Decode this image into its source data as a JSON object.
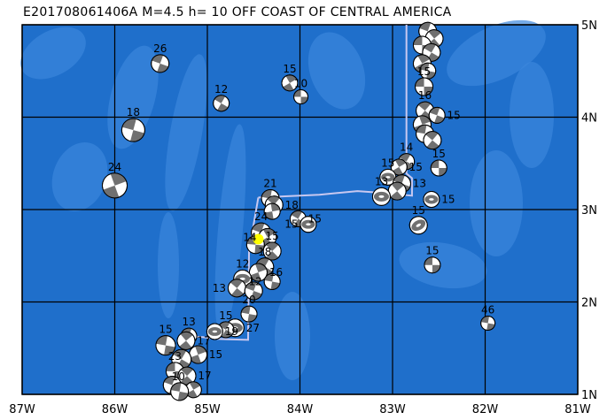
{
  "title": "E201708061406A M=4.5 h= 10 OFF COAST OF CENTRAL AMERICA",
  "map": {
    "lon_range_W": [
      87,
      81
    ],
    "lat_range_N": [
      1,
      5
    ],
    "x_ticks": [
      "87W",
      "86W",
      "85W",
      "84W",
      "83W",
      "82W",
      "81W"
    ],
    "y_ticks": [
      "5N",
      "4N",
      "3N",
      "2N",
      "1N"
    ],
    "grid": true,
    "colors": {
      "ocean": "#1f6fcb",
      "ridge": "#3a86dc",
      "ball_gray": "#707070",
      "boundary": "#c8c8f0",
      "epicenter": "#ffff00"
    },
    "epicenter": {
      "lonW": 84.45,
      "latN": 2.68
    },
    "boundary_line": [
      [
        84.45,
        3.13
      ],
      [
        83.79,
        3.16
      ],
      [
        83.38,
        3.2
      ],
      [
        83.09,
        3.18
      ],
      [
        82.79,
        3.15
      ],
      [
        82.79,
        3.34
      ],
      [
        82.85,
        3.39
      ],
      [
        82.85,
        5.0
      ]
    ],
    "boundary_line_2": [
      [
        84.45,
        3.13
      ],
      [
        84.55,
        2.55
      ],
      [
        84.56,
        1.59
      ],
      [
        84.9,
        1.6
      ],
      [
        85.05,
        1.62
      ],
      [
        85.25,
        1.63
      ]
    ]
  },
  "events": [
    {
      "lonW": 85.51,
      "latN": 4.58,
      "depth": "26",
      "r": 10,
      "rot": 20,
      "type": "ss"
    },
    {
      "lonW": 84.11,
      "latN": 4.37,
      "depth": "15",
      "r": 9,
      "rot": 60,
      "type": "ss"
    },
    {
      "lonW": 83.99,
      "latN": 4.22,
      "depth": "10",
      "r": 8,
      "rot": 0,
      "type": "ss"
    },
    {
      "lonW": 84.85,
      "latN": 4.15,
      "depth": "12",
      "r": 9,
      "rot": 30,
      "type": "ss"
    },
    {
      "lonW": 85.8,
      "latN": 3.86,
      "depth": "18",
      "r": 13,
      "rot": 15,
      "type": "ss"
    },
    {
      "lonW": 86.0,
      "latN": 3.26,
      "depth": "24",
      "r": 14,
      "rot": 70,
      "type": "ss"
    },
    {
      "lonW": 84.32,
      "latN": 3.12,
      "depth": "21",
      "r": 10,
      "rot": 10,
      "type": "ss"
    },
    {
      "lonW": 84.28,
      "latN": 3.05,
      "depth": "18",
      "r": 10,
      "rot": 40,
      "type": "ss"
    },
    {
      "lonW": 84.3,
      "latN": 2.98,
      "depth": "",
      "r": 9,
      "rot": 80,
      "type": "ss"
    },
    {
      "lonW": 84.02,
      "latN": 2.9,
      "depth": "15",
      "r": 9,
      "rot": 30,
      "type": "ss"
    },
    {
      "lonW": 83.91,
      "latN": 2.84,
      "depth": "15",
      "r": 9,
      "rot": 0,
      "type": "th"
    },
    {
      "lonW": 84.42,
      "latN": 2.75,
      "depth": "24",
      "r": 11,
      "rot": 20,
      "type": "ss"
    },
    {
      "lonW": 84.35,
      "latN": 2.7,
      "depth": "14",
      "r": 10,
      "rot": 60,
      "type": "ss"
    },
    {
      "lonW": 84.48,
      "latN": 2.62,
      "depth": "",
      "r": 10,
      "rot": 5,
      "type": "ss"
    },
    {
      "lonW": 84.3,
      "latN": 2.55,
      "depth": "15",
      "r": 10,
      "rot": 45,
      "type": "ss"
    },
    {
      "lonW": 84.38,
      "latN": 2.38,
      "depth": "18",
      "r": 10,
      "rot": 30,
      "type": "ss"
    },
    {
      "lonW": 84.45,
      "latN": 2.32,
      "depth": "16",
      "r": 10,
      "rot": 70,
      "type": "ss"
    },
    {
      "lonW": 84.3,
      "latN": 2.22,
      "depth": "12",
      "r": 9,
      "rot": 10,
      "type": "ss"
    },
    {
      "lonW": 84.62,
      "latN": 2.25,
      "depth": "12",
      "r": 10,
      "rot": 0,
      "type": "th"
    },
    {
      "lonW": 84.68,
      "latN": 2.15,
      "depth": "13",
      "r": 10,
      "rot": 40,
      "type": "ss"
    },
    {
      "lonW": 84.5,
      "latN": 2.12,
      "depth": "",
      "r": 10,
      "rot": 20,
      "type": "ss"
    },
    {
      "lonW": 84.55,
      "latN": 1.87,
      "depth": "20",
      "r": 9,
      "rot": 10,
      "type": "ss"
    },
    {
      "lonW": 84.7,
      "latN": 1.72,
      "depth": "27",
      "r": 10,
      "rot": 0,
      "type": "th"
    },
    {
      "lonW": 84.8,
      "latN": 1.7,
      "depth": "15",
      "r": 9,
      "rot": 30,
      "type": "ss"
    },
    {
      "lonW": 84.92,
      "latN": 1.68,
      "depth": "19",
      "r": 9,
      "rot": 0,
      "type": "th"
    },
    {
      "lonW": 85.2,
      "latN": 1.63,
      "depth": "13",
      "r": 9,
      "rot": 20,
      "type": "ss"
    },
    {
      "lonW": 85.23,
      "latN": 1.58,
      "depth": "17",
      "r": 10,
      "rot": 50,
      "type": "ss"
    },
    {
      "lonW": 85.45,
      "latN": 1.53,
      "depth": "15",
      "r": 11,
      "rot": 10,
      "type": "ss"
    },
    {
      "lonW": 85.1,
      "latN": 1.43,
      "depth": "15",
      "r": 10,
      "rot": 70,
      "type": "ss"
    },
    {
      "lonW": 85.28,
      "latN": 1.38,
      "depth": "",
      "r": 11,
      "rot": 30,
      "type": "ss"
    },
    {
      "lonW": 85.35,
      "latN": 1.25,
      "depth": "23",
      "r": 10,
      "rot": 0,
      "type": "ss"
    },
    {
      "lonW": 85.22,
      "latN": 1.2,
      "depth": "17",
      "r": 10,
      "rot": 45,
      "type": "ss"
    },
    {
      "lonW": 85.38,
      "latN": 1.1,
      "depth": "",
      "r": 10,
      "rot": 20,
      "type": "ss"
    },
    {
      "lonW": 85.15,
      "latN": 1.05,
      "depth": "10",
      "r": 9,
      "rot": 60,
      "type": "ss"
    },
    {
      "lonW": 85.3,
      "latN": 1.03,
      "depth": "",
      "r": 10,
      "rot": 10,
      "type": "ss"
    },
    {
      "lonW": 82.62,
      "latN": 4.93,
      "depth": "",
      "r": 10,
      "rot": 20,
      "type": "ss"
    },
    {
      "lonW": 82.55,
      "latN": 4.85,
      "depth": "",
      "r": 10,
      "rot": 50,
      "type": "ss"
    },
    {
      "lonW": 82.68,
      "latN": 4.78,
      "depth": "",
      "r": 10,
      "rot": 0,
      "type": "ss"
    },
    {
      "lonW": 82.58,
      "latN": 4.7,
      "depth": "",
      "r": 10,
      "rot": 30,
      "type": "ss"
    },
    {
      "lonW": 82.68,
      "latN": 4.58,
      "depth": "",
      "r": 10,
      "rot": 60,
      "type": "ss"
    },
    {
      "lonW": 82.62,
      "latN": 4.5,
      "depth": "",
      "r": 9,
      "rot": 10,
      "type": "ss"
    },
    {
      "lonW": 82.66,
      "latN": 4.33,
      "depth": "15",
      "r": 10,
      "rot": 0,
      "type": "ss"
    },
    {
      "lonW": 82.65,
      "latN": 4.07,
      "depth": "16",
      "r": 10,
      "rot": 40,
      "type": "ss"
    },
    {
      "lonW": 82.52,
      "latN": 4.02,
      "depth": "15",
      "r": 9,
      "rot": 20,
      "type": "ss"
    },
    {
      "lonW": 82.68,
      "latN": 3.92,
      "depth": "",
      "r": 10,
      "rot": 70,
      "type": "ss"
    },
    {
      "lonW": 82.65,
      "latN": 3.82,
      "depth": "",
      "r": 10,
      "rot": 10,
      "type": "ss"
    },
    {
      "lonW": 82.57,
      "latN": 3.75,
      "depth": "",
      "r": 10,
      "rot": 40,
      "type": "ss"
    },
    {
      "lonW": 82.5,
      "latN": 3.45,
      "depth": "15",
      "r": 9,
      "rot": 0,
      "type": "ss"
    },
    {
      "lonW": 82.85,
      "latN": 3.52,
      "depth": "14",
      "r": 9,
      "rot": 30,
      "type": "ss"
    },
    {
      "lonW": 82.93,
      "latN": 3.46,
      "depth": "15",
      "r": 9,
      "rot": 60,
      "type": "ss"
    },
    {
      "lonW": 83.05,
      "latN": 3.35,
      "depth": "15",
      "r": 9,
      "rot": 0,
      "type": "th"
    },
    {
      "lonW": 82.9,
      "latN": 3.28,
      "depth": "13",
      "r": 10,
      "rot": 20,
      "type": "ss"
    },
    {
      "lonW": 82.95,
      "latN": 3.2,
      "depth": "",
      "r": 10,
      "rot": 50,
      "type": "ss"
    },
    {
      "lonW": 83.12,
      "latN": 3.14,
      "depth": "13",
      "r": 10,
      "rot": 0,
      "type": "th"
    },
    {
      "lonW": 82.58,
      "latN": 3.11,
      "depth": "15",
      "r": 9,
      "rot": 0,
      "type": "th"
    },
    {
      "lonW": 82.72,
      "latN": 2.83,
      "depth": "15",
      "r": 10,
      "rot": -30,
      "type": "th"
    },
    {
      "lonW": 82.57,
      "latN": 2.4,
      "depth": "15",
      "r": 9,
      "rot": 0,
      "type": "ss"
    },
    {
      "lonW": 81.97,
      "latN": 1.77,
      "depth": "46",
      "r": 8,
      "rot": 10,
      "type": "ss"
    }
  ]
}
